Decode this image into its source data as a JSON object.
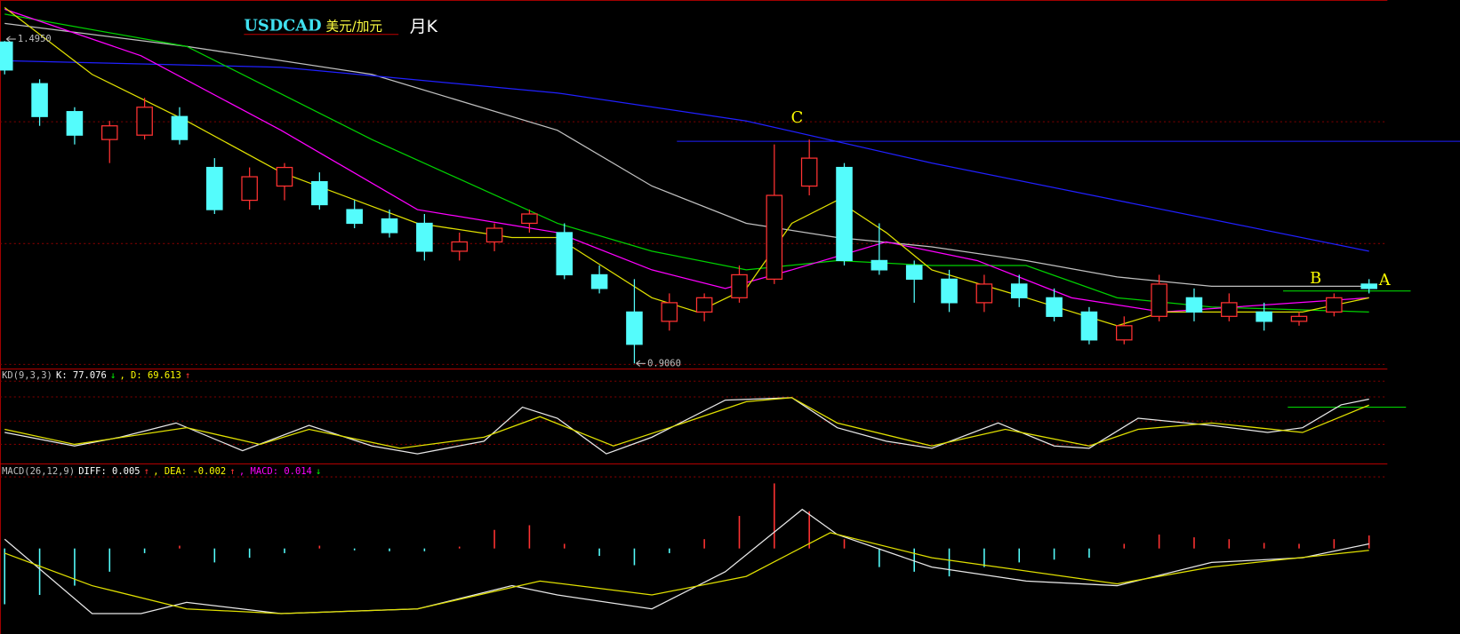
{
  "chart_data": [
    {
      "type": "candlestick",
      "title": "USDCAD",
      "subtitle": "美元/加元",
      "period": "月K",
      "annotations": [
        "C",
        "B",
        "A"
      ],
      "extreme_labels": [
        {
          "value": 1.495,
          "label": "1.4950"
        },
        {
          "value": 0.906,
          "label": "0.9060"
        }
      ],
      "xlim": [
        -0.133,
        41.6
      ],
      "ylim": [
        0.8975,
        1.5698
      ],
      "x": [
        0,
        1,
        2,
        3,
        4,
        5,
        6,
        7,
        8,
        9,
        10,
        11,
        12,
        13,
        14,
        15,
        16,
        17,
        18,
        19,
        20,
        21,
        22,
        23,
        24,
        25,
        26,
        27,
        28,
        29,
        30,
        31,
        32,
        33,
        34,
        35,
        36,
        37,
        38,
        39
      ],
      "open": [
        1.493,
        1.417,
        1.366,
        1.315,
        1.323,
        1.357,
        1.264,
        1.204,
        1.23,
        1.238,
        1.187,
        1.17,
        1.162,
        1.111,
        1.128,
        1.162,
        1.145,
        1.068,
        1.0,
        0.983,
        1.0,
        1.026,
        1.06,
        1.23,
        1.264,
        1.094,
        1.085,
        1.06,
        1.017,
        1.051,
        1.026,
        1.0,
        0.949,
        0.992,
        1.026,
        0.992,
        1.0,
        0.983,
        1.0,
        1.051
      ],
      "high": [
        1.495,
        1.425,
        1.374,
        1.349,
        1.391,
        1.374,
        1.281,
        1.264,
        1.272,
        1.255,
        1.204,
        1.187,
        1.179,
        1.145,
        1.162,
        1.187,
        1.162,
        1.085,
        1.06,
        1.034,
        1.034,
        1.085,
        1.306,
        1.315,
        1.272,
        1.162,
        1.094,
        1.077,
        1.068,
        1.068,
        1.043,
        1.009,
        0.992,
        1.068,
        1.043,
        1.034,
        1.017,
        1.0,
        1.034,
        1.06
      ],
      "low": [
        1.434,
        1.34,
        1.306,
        1.272,
        1.315,
        1.306,
        1.179,
        1.187,
        1.204,
        1.187,
        1.153,
        1.136,
        1.094,
        1.094,
        1.111,
        1.145,
        1.06,
        1.034,
        0.906,
        0.966,
        0.983,
        1.017,
        1.051,
        1.213,
        1.085,
        1.068,
        1.017,
        1.0,
        1.0,
        1.009,
        0.983,
        0.941,
        0.941,
        0.983,
        0.983,
        0.983,
        0.966,
        0.975,
        0.992,
        1.034
      ],
      "close": [
        1.442,
        1.357,
        1.323,
        1.34,
        1.374,
        1.315,
        1.187,
        1.247,
        1.264,
        1.196,
        1.162,
        1.145,
        1.111,
        1.128,
        1.153,
        1.179,
        1.068,
        1.043,
        0.941,
        1.017,
        1.026,
        1.068,
        1.213,
        1.281,
        1.094,
        1.077,
        1.06,
        1.017,
        1.051,
        1.026,
        0.992,
        0.949,
        0.975,
        1.051,
        1.0,
        1.017,
        0.983,
        0.992,
        1.026,
        1.043
      ],
      "up_color": "#ff3232",
      "down_color": "#54fcfc",
      "lines": [
        {
          "color": "#c0c0c0",
          "x": [
            0,
            5.2,
            10.5,
            15.8,
            18.5,
            21.2,
            23.8,
            26.5,
            29.2,
            31.8,
            34.5,
            39
          ],
          "values": [
            1.527,
            1.485,
            1.434,
            1.332,
            1.23,
            1.162,
            1.136,
            1.119,
            1.094,
            1.064,
            1.047,
            1.047
          ]
        },
        {
          "color": "#2020ff",
          "x": [
            0,
            7.9,
            15.8,
            21.2,
            26.5,
            31.8,
            39
          ],
          "values": [
            1.459,
            1.447,
            1.4,
            1.349,
            1.272,
            1.204,
            1.111
          ]
        },
        {
          "color": "#00d000",
          "x": [
            0,
            5.2,
            10.5,
            15.8,
            18.5,
            21.2,
            23.8,
            26.5,
            29.2,
            31.8,
            34.5,
            39
          ],
          "values": [
            1.544,
            1.485,
            1.315,
            1.162,
            1.111,
            1.077,
            1.094,
            1.085,
            1.085,
            1.026,
            1.009,
            1.0
          ]
        },
        {
          "color": "#ff00ff",
          "x": [
            0,
            3.9,
            7.9,
            11.8,
            15.8,
            18.5,
            20.6,
            22.5,
            25.2,
            27.8,
            30.5,
            33.1,
            39
          ],
          "values": [
            1.553,
            1.468,
            1.332,
            1.187,
            1.145,
            1.077,
            1.043,
            1.077,
            1.128,
            1.094,
            1.026,
            1.0,
            1.026
          ]
        },
        {
          "color": "#e0e000",
          "x": [
            0,
            2.5,
            5.2,
            7.9,
            11.8,
            14.5,
            15.8,
            18.5,
            19.8,
            21.2,
            22.5,
            23.8,
            25.2,
            26.5,
            29.2,
            31.8,
            33.1,
            37.1,
            39
          ],
          "values": [
            1.556,
            1.434,
            1.349,
            1.255,
            1.162,
            1.136,
            1.136,
            1.026,
            1.0,
            1.043,
            1.162,
            1.204,
            1.145,
            1.077,
            1.026,
            0.975,
            1.0,
            1.0,
            1.026
          ]
        }
      ]
    },
    {
      "type": "line",
      "xlim": [
        -0.133,
        41.6
      ],
      "ylim": [
        -2.4,
        112.9
      ],
      "header": [
        {
          "text": "KD(9,3,3)",
          "color": "#c0c0c0"
        },
        {
          "text": "K: 77.076",
          "color": "#ffffff"
        },
        {
          "text": "↓",
          "color": "#00ff00"
        },
        {
          "text": ", D: 69.613",
          "color": "#ffff00"
        },
        {
          "text": "↑",
          "color": "#ff3232"
        }
      ],
      "series": [
        {
          "color": "#e8e8e8",
          "x": [
            0,
            2,
            3.3,
            4.9,
            6.8,
            8.7,
            10.5,
            11.8,
            13.7,
            14.8,
            15.8,
            17.2,
            18.5,
            20.6,
            22.5,
            23.8,
            25.2,
            26.5,
            28.4,
            30,
            31,
            32.4,
            34.5,
            36.1,
            37.1,
            38.2,
            39
          ],
          "values": [
            35,
            18,
            29,
            47,
            12,
            44,
            18,
            8,
            24,
            67,
            53,
            8,
            29,
            76,
            79,
            41,
            24,
            15,
            47,
            18,
            15,
            53,
            44,
            35,
            41,
            70,
            77.076
          ]
        },
        {
          "color": "#e0e000",
          "x": [
            0,
            2,
            5.2,
            7.3,
            8.7,
            11.3,
            13.7,
            15.3,
            17.4,
            19,
            21.2,
            22.5,
            23.8,
            26.5,
            28.6,
            31,
            32.4,
            34.5,
            37.1,
            39
          ],
          "values": [
            39,
            20,
            41,
            20,
            39,
            15,
            29,
            55,
            18,
            41,
            74,
            79,
            47,
            18,
            39,
            18,
            39,
            47,
            35,
            69.613
          ]
        }
      ]
    },
    {
      "type": "macd",
      "xlim": [
        -0.133,
        41.6
      ],
      "ylim": [
        -0.092,
        0.088
      ],
      "header": [
        {
          "text": "MACD(26,12,9)",
          "color": "#c0c0c0"
        },
        {
          "text": "DIFF: 0.005",
          "color": "#ffffff"
        },
        {
          "text": "↑",
          "color": "#ff3232"
        },
        {
          "text": ", DEA: -0.002",
          "color": "#ffff00"
        },
        {
          "text": "↑",
          "color": "#ff3232"
        },
        {
          "text": ", MACD: 0.014",
          "color": "#ff00ff"
        },
        {
          "text": "↓",
          "color": "#00ff00"
        }
      ],
      "up_color": "#ff3232",
      "down_color": "#54fcfc",
      "histogram": {
        "x": [
          0,
          1,
          2,
          3,
          4,
          5,
          6,
          7,
          8,
          9,
          10,
          11,
          12,
          13,
          14,
          15,
          16,
          17,
          18,
          19,
          20,
          21,
          22,
          23,
          24,
          25,
          26,
          27,
          28,
          29,
          30,
          31,
          32,
          33,
          34,
          35,
          36,
          37,
          38,
          39
        ],
        "values": [
          -0.06,
          -0.05,
          -0.04,
          -0.025,
          -0.005,
          0.003,
          -0.015,
          -0.01,
          -0.005,
          0.003,
          -0.002,
          -0.003,
          -0.003,
          0.002,
          0.02,
          0.025,
          0.005,
          -0.008,
          -0.018,
          -0.005,
          0.01,
          0.035,
          0.07,
          0.04,
          0.01,
          -0.02,
          -0.025,
          -0.03,
          -0.02,
          -0.015,
          -0.012,
          -0.01,
          0.005,
          0.015,
          0.012,
          0.01,
          0.006,
          0.005,
          0.01,
          0.014
        ]
      },
      "series": [
        {
          "color": "#e8e8e8",
          "x": [
            0,
            2.5,
            3.9,
            5.2,
            7.9,
            11.8,
            14.5,
            15.8,
            18.5,
            20.6,
            22.8,
            23.8,
            26.5,
            29.2,
            31.8,
            34.5,
            37.1,
            39
          ],
          "values": [
            0.01,
            -0.07,
            -0.07,
            -0.058,
            -0.07,
            -0.065,
            -0.04,
            -0.05,
            -0.065,
            -0.025,
            0.042,
            0.015,
            -0.02,
            -0.035,
            -0.04,
            -0.015,
            -0.01,
            0.005
          ]
        },
        {
          "color": "#e0e000",
          "x": [
            0,
            2.5,
            5.2,
            7.9,
            11.8,
            15.3,
            18.5,
            21.2,
            23.6,
            26.5,
            31.8,
            34.5,
            39
          ],
          "values": [
            -0.005,
            -0.04,
            -0.065,
            -0.07,
            -0.065,
            -0.035,
            -0.05,
            -0.03,
            0.017,
            -0.01,
            -0.038,
            -0.02,
            -0.002
          ]
        }
      ]
    }
  ]
}
